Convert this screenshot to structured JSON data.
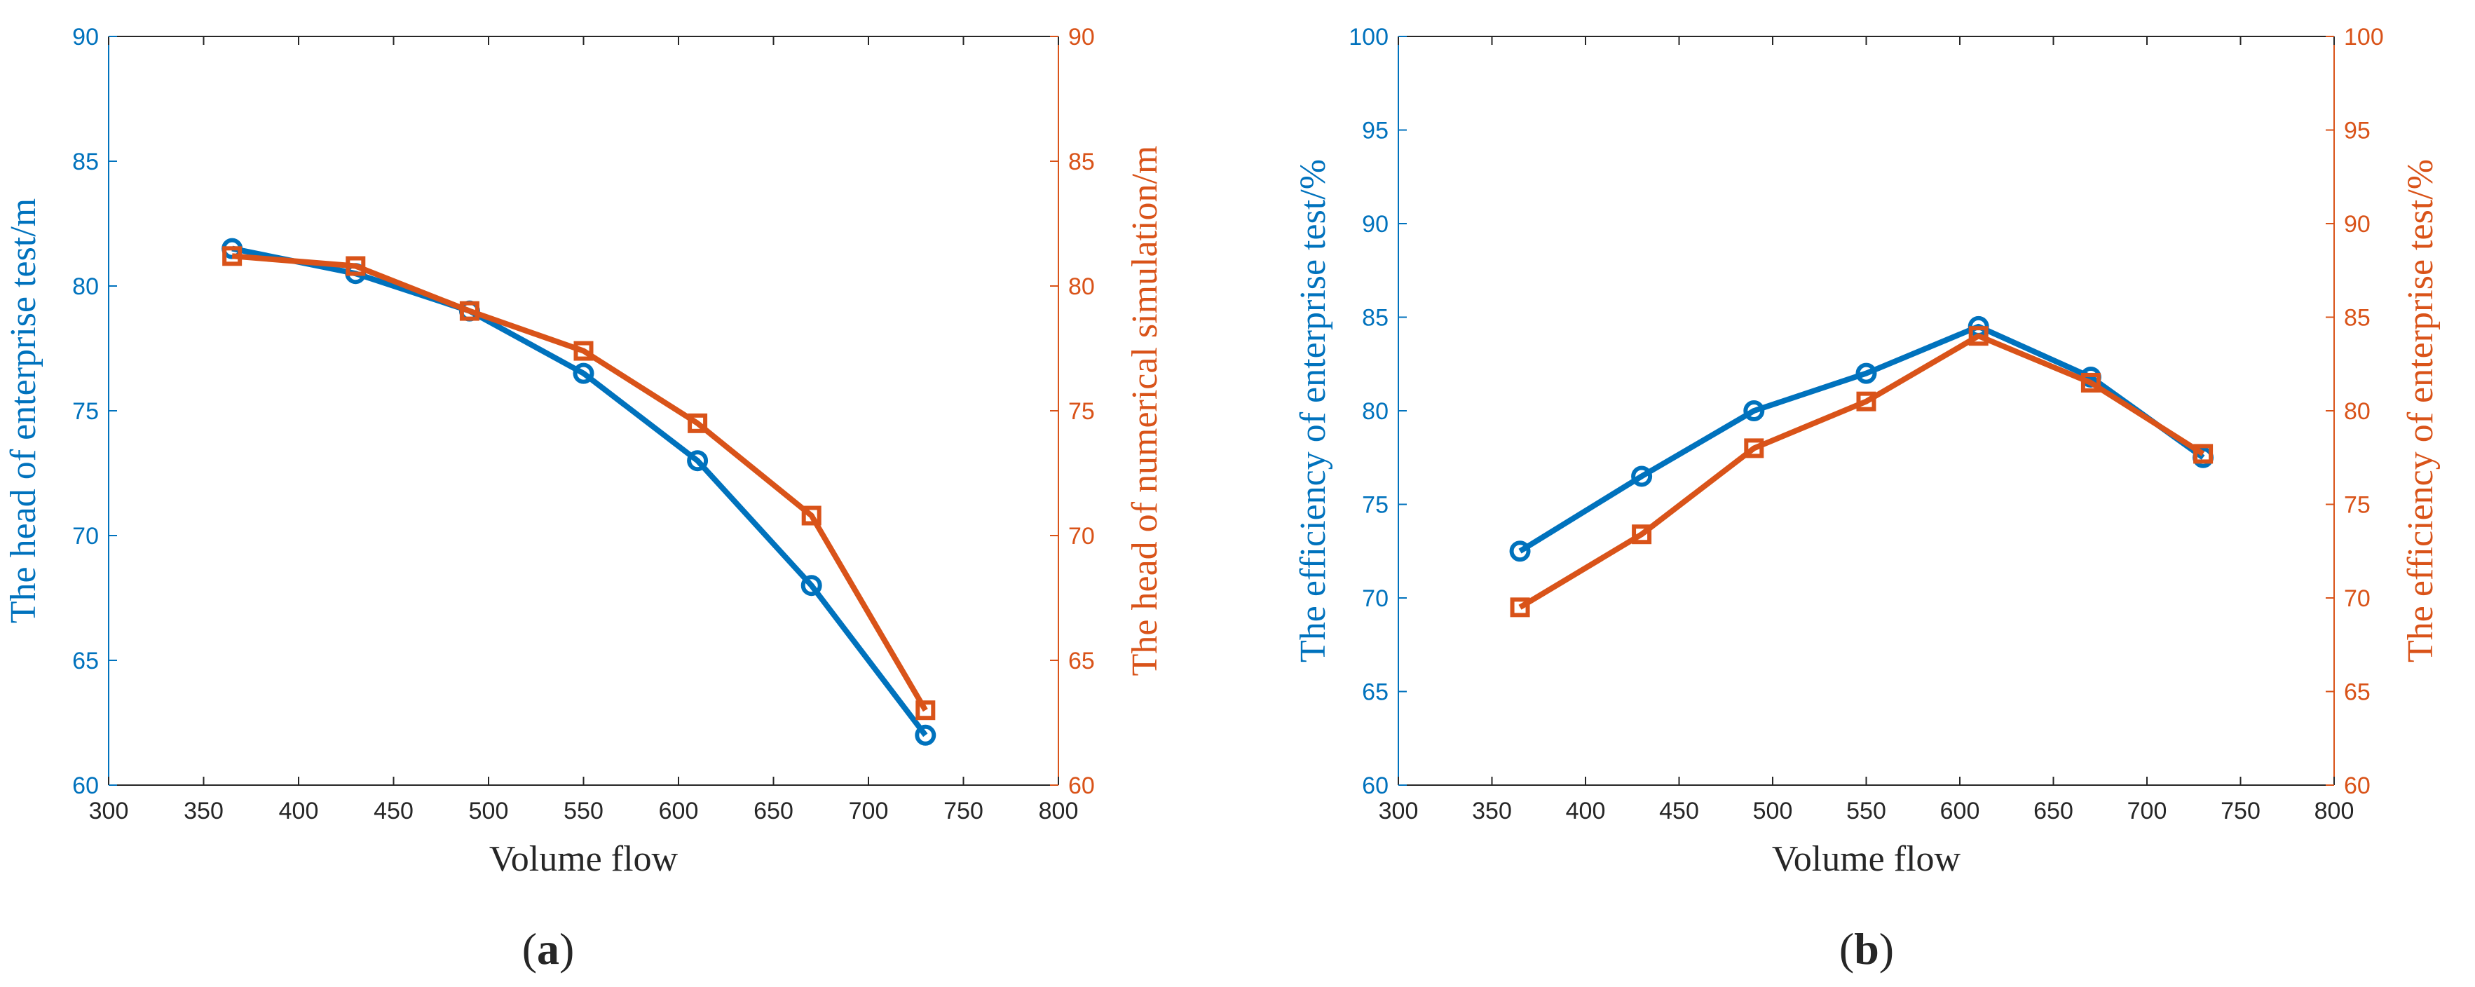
{
  "colors": {
    "blue": "#0072BD",
    "orange": "#D95319",
    "axis": "#262626"
  },
  "chart_data": [
    {
      "type": "line",
      "caption": "a",
      "xlabel": "Volume flow",
      "ylabel_left": "The head of enterprise test/m",
      "ylabel_right": "The head of numerical simulation/m",
      "xlim": [
        300,
        800
      ],
      "xticks": [
        "300",
        "350",
        "400",
        "450",
        "500",
        "550",
        "600",
        "650",
        "700",
        "750",
        "800"
      ],
      "ylim_left": [
        60,
        90
      ],
      "yticks_left": [
        "60",
        "65",
        "70",
        "75",
        "80",
        "85",
        "90"
      ],
      "ylim_right": [
        60,
        90
      ],
      "yticks_right": [
        "60",
        "65",
        "70",
        "75",
        "80",
        "85",
        "90"
      ],
      "x": [
        365,
        430,
        490,
        550,
        610,
        670,
        730
      ],
      "series": [
        {
          "name": "The head of enterprise test/m",
          "axis": "left",
          "marker": "circle",
          "values": [
            81.5,
            80.5,
            79.0,
            76.5,
            73.0,
            68.0,
            62.0
          ]
        },
        {
          "name": "The head of numerical simulation/m",
          "axis": "right",
          "marker": "square",
          "values": [
            81.2,
            80.8,
            79.0,
            77.4,
            74.5,
            70.8,
            63.0
          ]
        }
      ]
    },
    {
      "type": "line",
      "caption": "b",
      "xlabel": "Volume flow",
      "ylabel_left": "The efficiency of enterprise test/%",
      "ylabel_right": "The efficiency of enterprise test/%",
      "xlim": [
        300,
        800
      ],
      "xticks": [
        "300",
        "350",
        "400",
        "450",
        "500",
        "550",
        "600",
        "650",
        "700",
        "750",
        "800"
      ],
      "ylim_left": [
        60,
        100
      ],
      "yticks_left": [
        "60",
        "65",
        "70",
        "75",
        "80",
        "85",
        "90",
        "95",
        "100"
      ],
      "ylim_right": [
        60,
        100
      ],
      "yticks_right": [
        "60",
        "65",
        "70",
        "75",
        "80",
        "85",
        "90",
        "95",
        "100"
      ],
      "x": [
        365,
        430,
        490,
        550,
        610,
        670,
        730
      ],
      "series": [
        {
          "name": "The efficiency of enterprise test/% (left)",
          "axis": "left",
          "marker": "circle",
          "values": [
            72.5,
            76.5,
            80.0,
            82.0,
            84.5,
            81.8,
            77.5
          ]
        },
        {
          "name": "The efficiency of enterprise test/% (right)",
          "axis": "right",
          "marker": "square",
          "values": [
            69.5,
            73.4,
            78.0,
            80.5,
            84.0,
            81.5,
            77.7
          ]
        }
      ]
    }
  ]
}
